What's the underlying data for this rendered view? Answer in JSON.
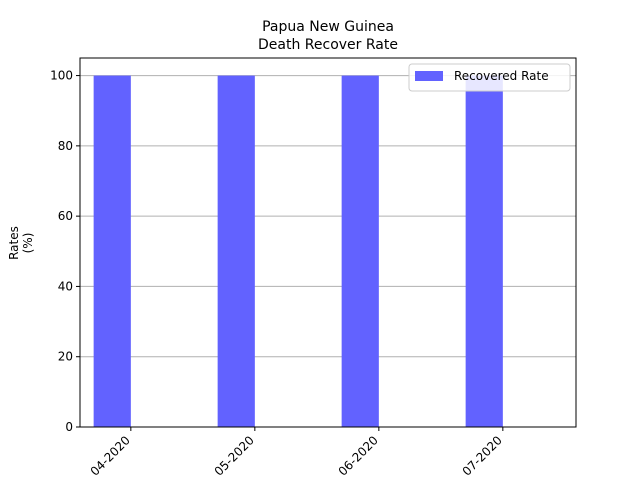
{
  "chart_data": {
    "type": "bar",
    "title": "Papua New Guinea",
    "subtitle": "Death Recover Rate",
    "ylabel": "Rates",
    "ylabel_unit": "(%)",
    "xlabel": "",
    "categories": [
      "04-2020",
      "05-2020",
      "06-2020",
      "07-2020"
    ],
    "series": [
      {
        "name": "Recovered Rate",
        "values": [
          100,
          100,
          100,
          100
        ],
        "color": "#6262ff"
      }
    ],
    "ylim": [
      0,
      105
    ],
    "yticks": [
      0,
      20,
      40,
      60,
      80,
      100
    ],
    "grid": "y",
    "legend_position": "top-right",
    "xtick_rotation": 45
  }
}
